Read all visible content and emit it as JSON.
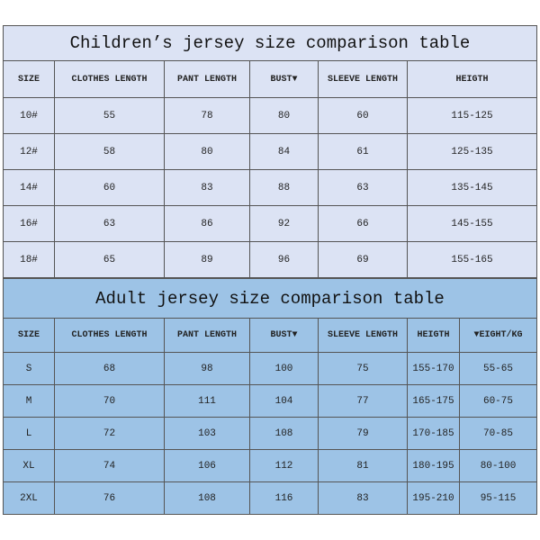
{
  "children": {
    "title": "Children’s jersey size comparison table",
    "headers": [
      "SIZE",
      "CLOTHES LENGTH",
      "PANT LENGTH",
      "BUST▼",
      "SLEEVE LENGTH",
      "HEIGTH"
    ],
    "rows": [
      [
        "10#",
        "55",
        "78",
        "80",
        "60",
        "115-125"
      ],
      [
        "12#",
        "58",
        "80",
        "84",
        "61",
        "125-135"
      ],
      [
        "14#",
        "60",
        "83",
        "88",
        "63",
        "135-145"
      ],
      [
        "16#",
        "63",
        "86",
        "92",
        "66",
        "145-155"
      ],
      [
        "18#",
        "65",
        "89",
        "96",
        "69",
        "155-165"
      ]
    ]
  },
  "adult": {
    "title": "Adult jersey size comparison table",
    "headers": [
      "SIZE",
      "CLOTHES LENGTH",
      "PANT LENGTH",
      "BUST▼",
      "SLEEVE LENGTH",
      "HEIGTH",
      "▼EIGHT/KG"
    ],
    "rows": [
      [
        "S",
        "68",
        "98",
        "100",
        "75",
        "155-170",
        "55-65"
      ],
      [
        "M",
        "70",
        "111",
        "104",
        "77",
        "165-175",
        "60-75"
      ],
      [
        "L",
        "72",
        "103",
        "108",
        "79",
        "170-185",
        "70-85"
      ],
      [
        "XL",
        "74",
        "106",
        "112",
        "81",
        "180-195",
        "80-100"
      ],
      [
        "2XL",
        "76",
        "108",
        "116",
        "83",
        "195-210",
        "95-115"
      ]
    ]
  },
  "colors": {
    "children_bg": "#dce3f4",
    "adult_bg": "#9dc3e6"
  }
}
